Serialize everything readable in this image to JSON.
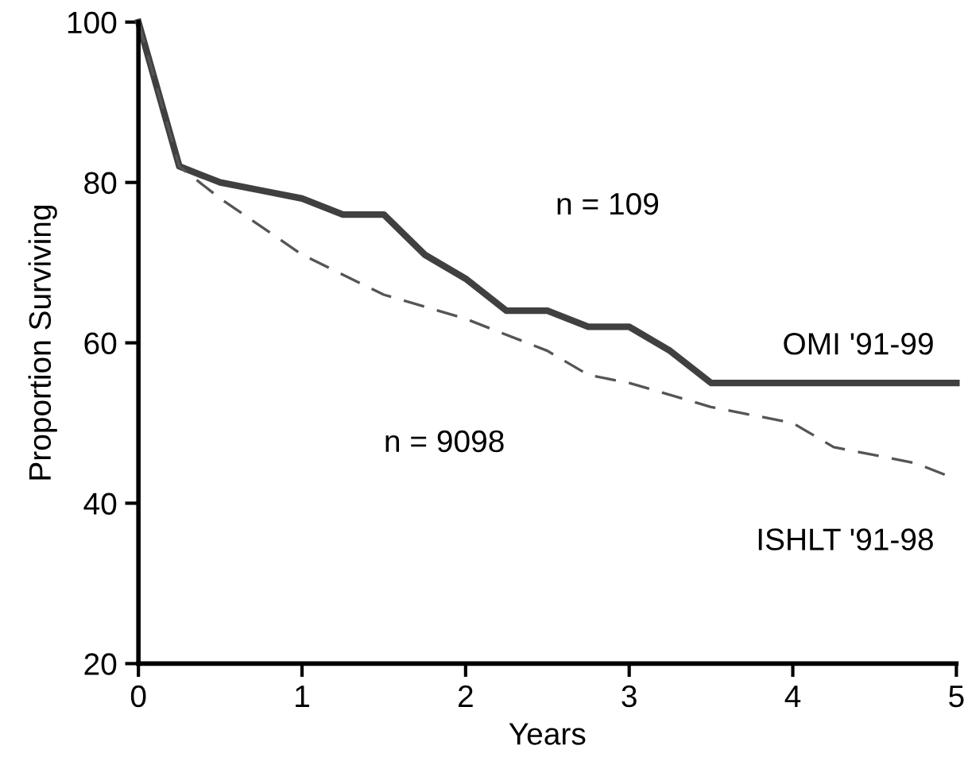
{
  "chart_data": {
    "type": "line",
    "xlabel": "Years",
    "ylabel": "Proportion Surviving",
    "xlim": [
      0,
      5
    ],
    "ylim": [
      20,
      100
    ],
    "xticks": [
      0,
      1,
      2,
      3,
      4,
      5
    ],
    "yticks": [
      20,
      40,
      60,
      80,
      100
    ],
    "grid": false,
    "legend": false,
    "marker": "none",
    "series": [
      {
        "name": "OMI '91-99",
        "color": "#404040",
        "line_style": "solid",
        "x": [
          0,
          0.25,
          0.5,
          0.75,
          1,
          1.25,
          1.5,
          1.75,
          2,
          2.25,
          2.5,
          2.75,
          3,
          3.25,
          3.5,
          5
        ],
        "values": [
          100,
          82,
          80,
          79,
          78,
          76,
          76,
          71,
          68,
          64,
          64,
          62,
          62,
          59,
          55,
          55
        ]
      },
      {
        "name": "ISHLT '91-98",
        "color": "#555555",
        "line_style": "dashed",
        "x": [
          0,
          0.25,
          0.5,
          1,
          1.5,
          2,
          2.5,
          2.75,
          3,
          3.5,
          4,
          4.25,
          4.75,
          5
        ],
        "values": [
          100,
          82,
          78,
          71,
          66,
          63,
          59,
          56,
          55,
          52,
          50,
          47,
          45,
          43
        ]
      }
    ],
    "annotations": [
      "n = 109",
      "n = 9098"
    ]
  }
}
